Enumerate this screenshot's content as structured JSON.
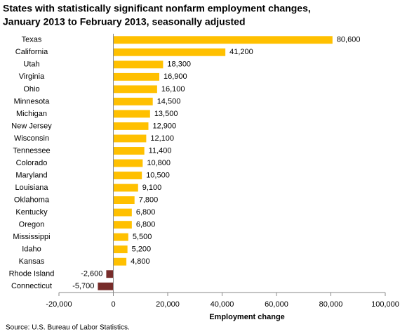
{
  "chart_data": {
    "type": "hbar",
    "title": [
      "States with statistically significant nonfarm employment changes,",
      "January 2013 to February 2013, seasonally adjusted"
    ],
    "categories": [
      "Texas",
      "California",
      "Utah",
      "Virginia",
      "Ohio",
      "Minnesota",
      "Michigan",
      "New Jersey",
      "Wisconsin",
      "Tennessee",
      "Colorado",
      "Maryland",
      "Louisiana",
      "Oklahoma",
      "Kentucky",
      "Oregon",
      "Mississippi",
      "Idaho",
      "Kansas",
      "Rhode Island",
      "Connecticut"
    ],
    "values": [
      80600,
      41200,
      18300,
      16900,
      16100,
      14500,
      13500,
      12900,
      12100,
      11400,
      10800,
      10500,
      9100,
      7800,
      6800,
      6800,
      5500,
      5200,
      4800,
      -2600,
      -5700
    ],
    "value_labels": [
      "80,600",
      "41,200",
      "18,300",
      "16,900",
      "16,100",
      "14,500",
      "13,500",
      "12,900",
      "12,100",
      "11,400",
      "10,800",
      "10,500",
      "9,100",
      "7,800",
      "6,800",
      "6,800",
      "5,500",
      "5,200",
      "4,800",
      "-2,600",
      "-5,700"
    ],
    "color": "#ffc000",
    "negative_color": "#772c2a",
    "xlim": [
      -20000,
      100000
    ],
    "xticks": [
      {
        "value": -20000,
        "label": "-20,000"
      },
      0,
      {
        "value": 20000,
        "label": "20,000"
      },
      {
        "value": 40000,
        "label": "40,000"
      },
      {
        "value": 60000,
        "label": "60,000"
      },
      {
        "value": 80000,
        "label": "80,000"
      },
      {
        "value": 100000,
        "label": "100,000"
      }
    ],
    "xlabel": "Employment change",
    "source": "Source: U.S. Bureau of Labor Statistics."
  }
}
